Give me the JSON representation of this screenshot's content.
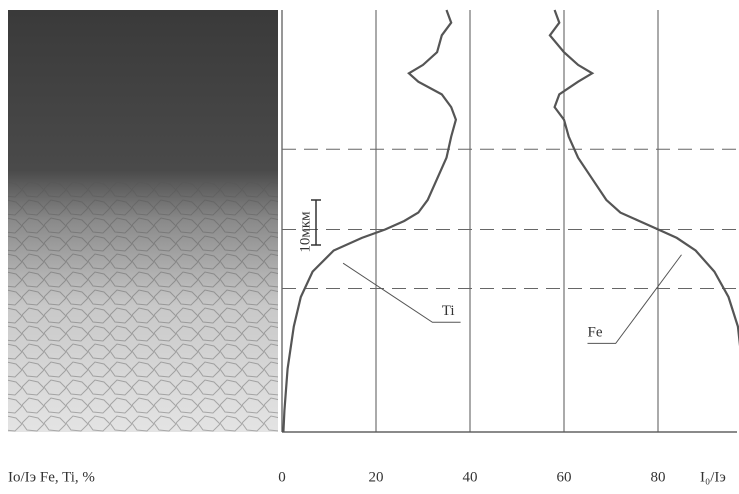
{
  "chart_data": {
    "type": "line",
    "x_label": "Io/Iэ Fe, Ti, %",
    "unit_label": "I₀/Iэ",
    "scale_label": "10мкм",
    "xlim": [
      0,
      100
    ],
    "xticks": [
      0,
      20,
      40,
      60,
      80
    ],
    "ylim": [
      0,
      100
    ],
    "depth": [
      0,
      3,
      6,
      10,
      13,
      15,
      17,
      20,
      23,
      26,
      30,
      35,
      40,
      45,
      48,
      50,
      52,
      54,
      57,
      62,
      68,
      75,
      85,
      95,
      100
    ],
    "dashed_lines": [
      33,
      52,
      66
    ],
    "series": [
      {
        "name": "Ti",
        "color": "#555555",
        "values": [
          35,
          36,
          34,
          33,
          30,
          27,
          29,
          34,
          36,
          37,
          36,
          35,
          33,
          31,
          29,
          26,
          22,
          17,
          11,
          6.5,
          4,
          2.5,
          1.2,
          0.5,
          0.3
        ]
      },
      {
        "name": "Fe",
        "color": "#555555",
        "values": [
          58,
          59,
          57,
          60,
          63,
          66,
          63,
          59,
          58,
          60,
          61,
          63,
          66,
          69,
          72,
          76,
          80,
          84,
          88,
          92,
          95,
          97,
          98,
          99,
          99
        ]
      }
    ]
  }
}
